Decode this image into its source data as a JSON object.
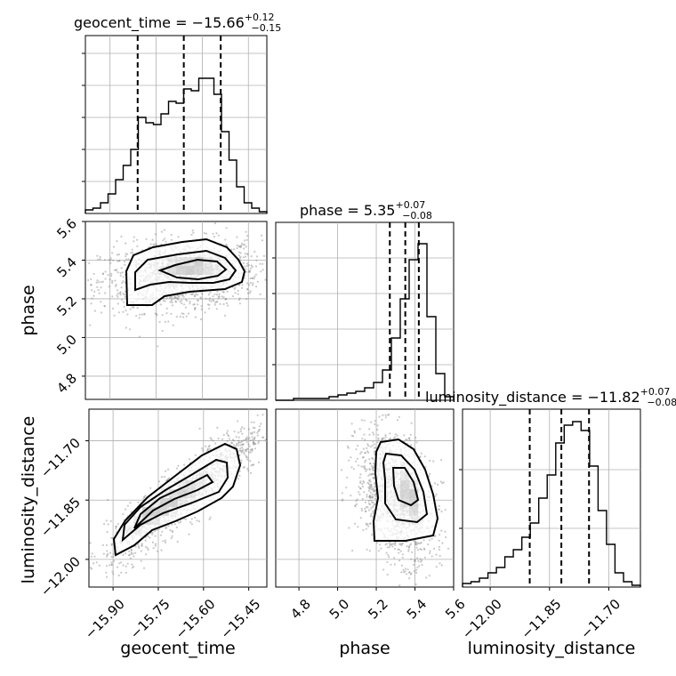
{
  "chart_data": {
    "type": "corner",
    "parameters": [
      "geocent_time",
      "phase",
      "luminosity_distance"
    ],
    "ranges": {
      "geocent_time": [
        -15.98,
        -15.39
      ],
      "phase": [
        4.68,
        5.6
      ],
      "luminosity_distance": [
        -12.07,
        -11.62
      ]
    },
    "ticks": {
      "geocent_time": [
        -15.9,
        -15.75,
        -15.6,
        -15.45
      ],
      "phase": [
        4.8,
        5.0,
        5.2,
        5.4,
        5.6
      ],
      "luminosity_distance": [
        -12.0,
        -11.85,
        -11.7
      ]
    },
    "tick_labels": {
      "geocent_time": [
        "−15.90",
        "−15.75",
        "−15.60",
        "−15.45"
      ],
      "phase_x": [
        "4.8",
        "5.0",
        "5.2",
        "5.4",
        "5.6"
      ],
      "phase_y": [
        "4.8",
        "5.0",
        "5.2",
        "5.4",
        "5.6"
      ],
      "luminosity_distance": [
        "−12.00",
        "−11.85",
        "−11.70"
      ]
    },
    "axis_labels": {
      "geocent_time": "geocent_time",
      "phase": "phase",
      "luminosity_distance": "luminosity_distance"
    },
    "titles": [
      {
        "name": "geocent_time = −15.66",
        "sup": "+0.12",
        "sub": "−0.15"
      },
      {
        "name": "phase = 5.35",
        "sup": "+0.07",
        "sub": "−0.08"
      },
      {
        "name": "luminosity_distance = −11.82",
        "sup": "+0.07",
        "sub": "−0.08"
      }
    ],
    "quantiles": {
      "geocent_time": [
        -15.81,
        -15.66,
        -15.54
      ],
      "phase": [
        5.27,
        5.35,
        5.42
      ],
      "luminosity_distance": [
        -11.9,
        -11.82,
        -11.75
      ]
    },
    "histograms": {
      "geocent_time": [
        0.02,
        0.03,
        0.06,
        0.11,
        0.19,
        0.27,
        0.36,
        0.54,
        0.51,
        0.5,
        0.56,
        0.63,
        0.62,
        0.7,
        0.69,
        0.76,
        0.76,
        0.67,
        0.46,
        0.3,
        0.15,
        0.06,
        0.03,
        0.01
      ],
      "phase": [
        0.0,
        0.0,
        0.01,
        0.01,
        0.01,
        0.01,
        0.02,
        0.03,
        0.04,
        0.05,
        0.07,
        0.1,
        0.17,
        0.35,
        0.57,
        0.79,
        0.88,
        0.47,
        0.15,
        0.02
      ],
      "luminosity_distance": [
        0.02,
        0.03,
        0.05,
        0.08,
        0.11,
        0.17,
        0.21,
        0.28,
        0.36,
        0.5,
        0.63,
        0.81,
        0.91,
        0.93,
        0.88,
        0.68,
        0.43,
        0.24,
        0.08,
        0.03,
        0.01
      ]
    },
    "grid": true,
    "colors": {
      "contour": "#000000",
      "density": "#000000",
      "scatter": "#888888",
      "grid": "#b0b0b0",
      "quantile_line": "#000000"
    }
  }
}
